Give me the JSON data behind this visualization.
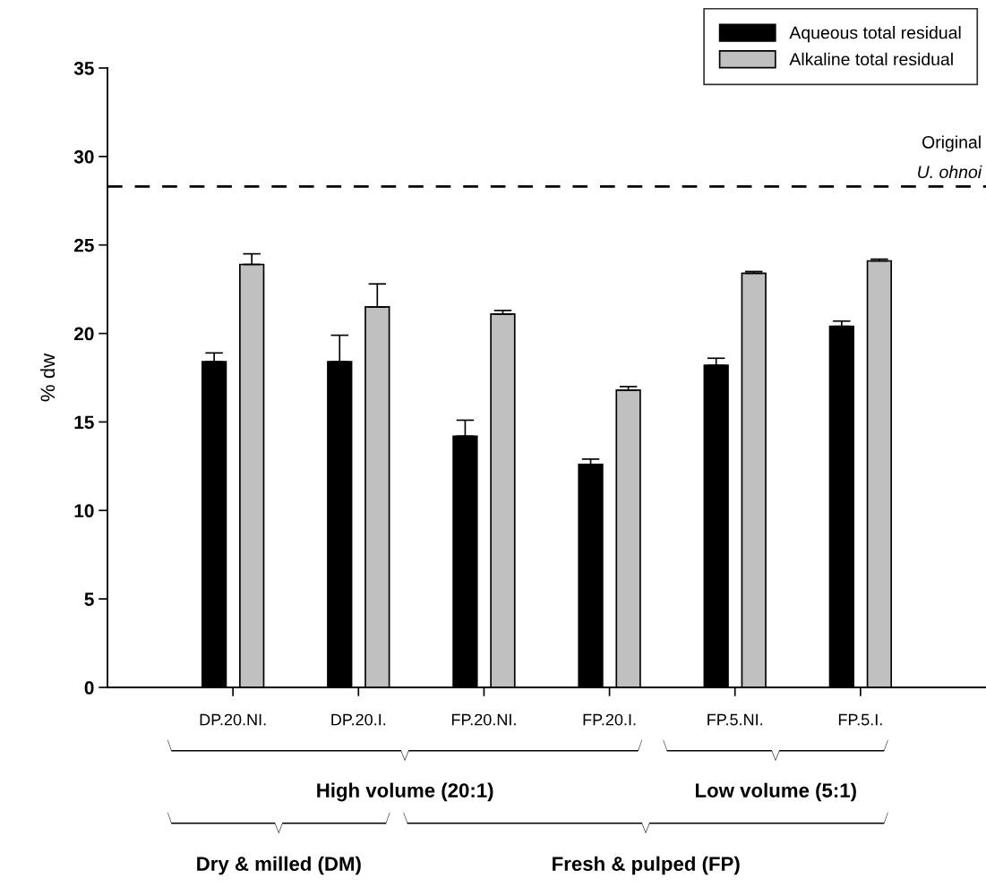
{
  "chart_data": {
    "type": "bar",
    "ylabel": "% dw",
    "categories": [
      "DP.20.NI.",
      "DP.20.I.",
      "FP.20.NI.",
      "FP.20.I.",
      "FP.5.NI.",
      "FP.5.I."
    ],
    "series": [
      {
        "name": "Aqueous total residual",
        "color": "#000000",
        "values": [
          18.4,
          18.4,
          14.2,
          12.6,
          18.2,
          20.4
        ],
        "errors": [
          0.5,
          1.5,
          0.9,
          0.3,
          0.4,
          0.3
        ]
      },
      {
        "name": "Alkaline total residual",
        "color": "#c0c0c0",
        "values": [
          23.9,
          21.5,
          21.1,
          16.8,
          23.4,
          24.1
        ],
        "errors": [
          0.6,
          1.3,
          0.2,
          0.2,
          0.1,
          0.1
        ]
      }
    ],
    "ylim": [
      0,
      35
    ],
    "yticks": [
      0,
      5,
      10,
      15,
      20,
      25,
      30,
      35
    ],
    "ref_lines": [
      {
        "axis": "y",
        "value": 28.3,
        "label": "Original\nU. ohnoi",
        "line_style": "dashed",
        "color": "#000000"
      }
    ],
    "annotations": [
      "High volume (20:1)",
      "Low volume (5:1)",
      "Dry & milled (DM)",
      "Fresh & pulped (FP)"
    ],
    "legend": "top right",
    "grid": false
  }
}
